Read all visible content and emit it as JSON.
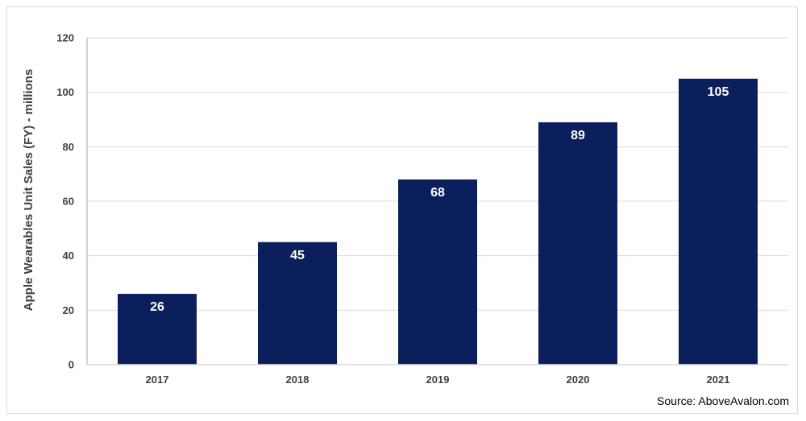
{
  "chart_data": {
    "type": "bar",
    "categories": [
      "2017",
      "2018",
      "2019",
      "2020",
      "2021"
    ],
    "values": [
      26,
      45,
      68,
      89,
      105
    ],
    "data_labels": [
      "26",
      "45",
      "68",
      "89",
      "105"
    ],
    "title": "",
    "xlabel": "",
    "ylabel": "Apple Wearables Unit Sales (FY) - millions",
    "ylim": [
      0,
      120
    ],
    "yticks": [
      0,
      20,
      40,
      60,
      80,
      100,
      120
    ],
    "ytick_labels": [
      "0",
      "20",
      "40",
      "60",
      "80",
      "100",
      "120"
    ],
    "grid": true,
    "legend": "none",
    "bar_color": "#0a1f5c",
    "grid_color": "#d9d9d9",
    "axis_color": "#8ea9db",
    "source": "Source: AboveAvalon.com"
  }
}
